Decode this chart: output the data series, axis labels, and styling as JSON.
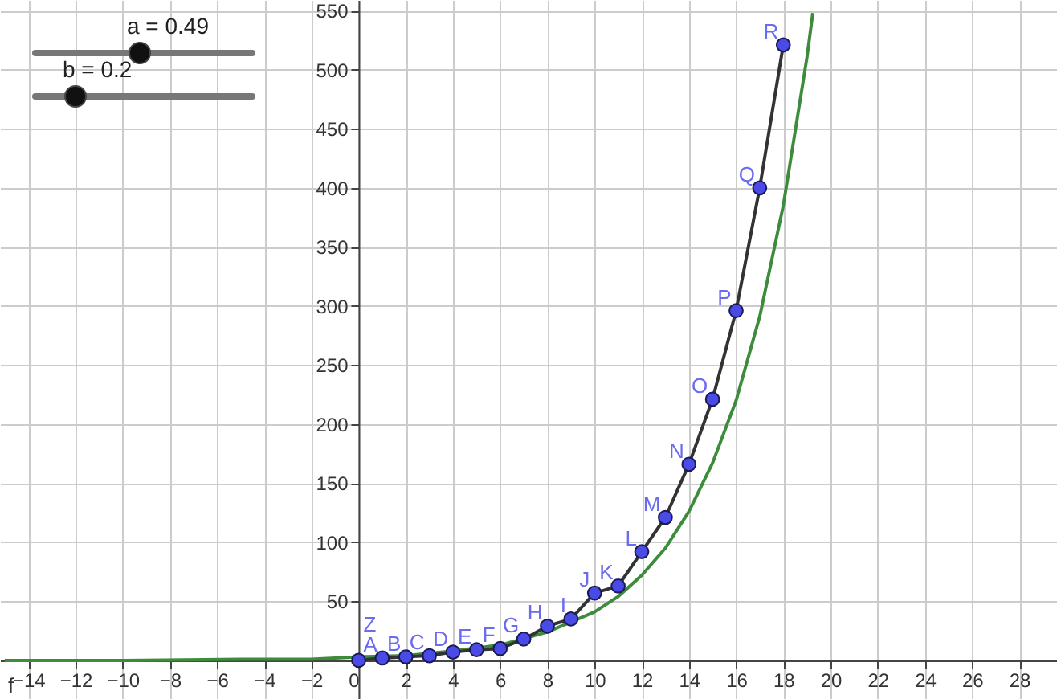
{
  "chart_data": {
    "type": "line",
    "xlim": [
      -15.2,
      29.6
    ],
    "ylim": [
      -32.7,
      559
    ],
    "xticks": [
      -14,
      -12,
      -10,
      -8,
      -6,
      -4,
      -2,
      0,
      2,
      4,
      6,
      8,
      10,
      12,
      14,
      16,
      18,
      20,
      22,
      24,
      26,
      28
    ],
    "yticks": [
      50,
      100,
      150,
      200,
      250,
      300,
      350,
      400,
      450,
      500,
      550
    ],
    "grid": true,
    "annotations": [
      "a = 0.49",
      "b = 0.2"
    ],
    "series": [
      {
        "name": "f",
        "color": "#3c8c3c",
        "x": [
          -15,
          -10,
          -5,
          -2,
          0,
          2,
          4,
          6,
          8,
          10,
          11,
          12,
          13,
          14,
          15,
          16,
          17,
          18,
          19,
          19.25
        ],
        "values": [
          0,
          0,
          1,
          1,
          3,
          4,
          8,
          13,
          24,
          41,
          54,
          72,
          95,
          126,
          167,
          220,
          291,
          385,
          510,
          548
        ]
      },
      {
        "color": "#333333",
        "x": [
          0,
          1,
          2,
          3,
          4,
          5,
          6,
          7,
          8,
          9,
          10,
          11,
          12,
          13,
          14,
          15,
          16,
          17,
          18
        ],
        "values": [
          0,
          2,
          3,
          4,
          7,
          9,
          10,
          18,
          29,
          35,
          57,
          63,
          92,
          121,
          166,
          221,
          296,
          400,
          521
        ]
      },
      {
        "type": "scatter",
        "marker": "circle",
        "color": "#4a4ae6",
        "x": [
          0,
          1,
          2,
          3,
          4,
          5,
          6,
          7,
          8,
          9,
          10,
          11,
          12,
          13,
          14,
          15,
          16,
          17,
          18
        ],
        "values": [
          0,
          2,
          3,
          4,
          7,
          9,
          10,
          18,
          29,
          35,
          57,
          63,
          92,
          121,
          166,
          221,
          296,
          400,
          521
        ],
        "value_labels": [
          "Z",
          "A",
          "B",
          "C",
          "D",
          "E",
          "F",
          "G",
          "H",
          "I",
          "J",
          "K",
          "L",
          "M",
          "N",
          "O",
          "P",
          "Q",
          "R"
        ]
      }
    ]
  }
}
